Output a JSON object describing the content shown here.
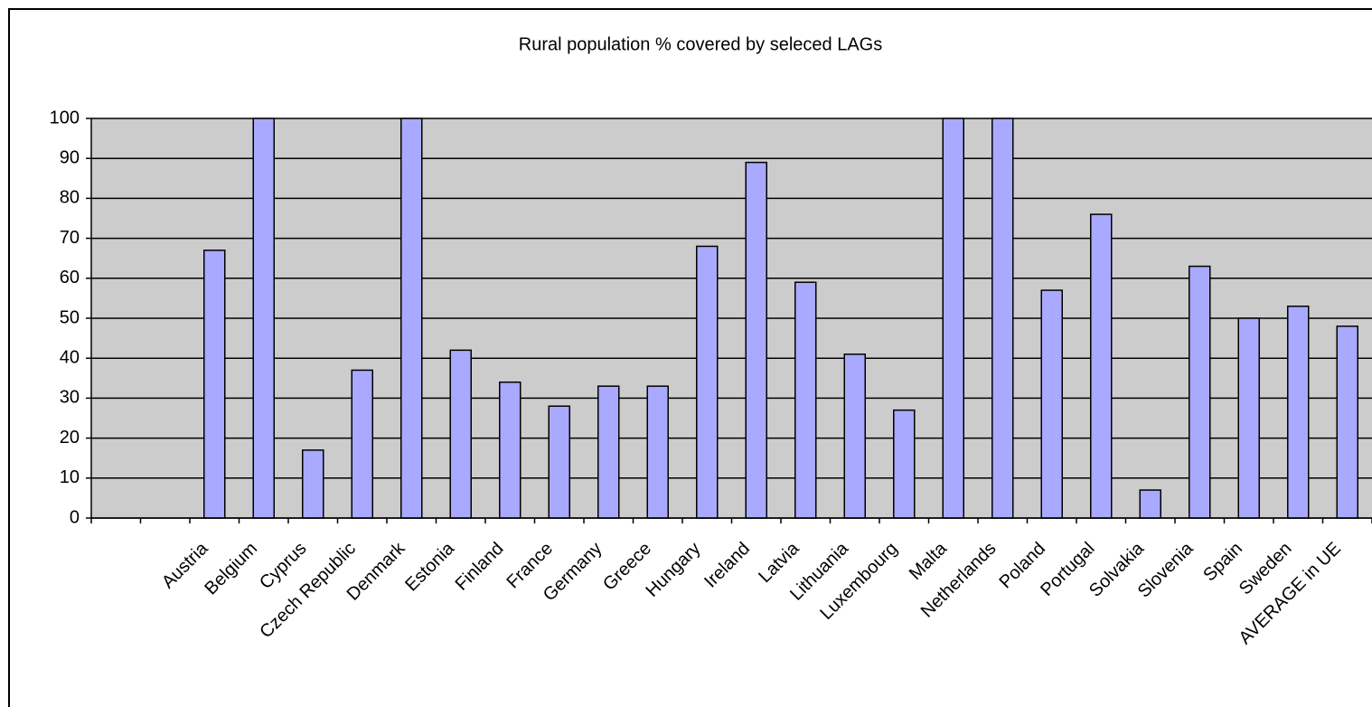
{
  "chart_data": {
    "type": "bar",
    "title": "Rural population % covered by seleced LAGs",
    "categories": [
      null,
      null,
      "Austria",
      "Belgium",
      "Cyprus",
      "Czech Republic",
      "Denmark",
      "Estonia",
      "Finland",
      "France",
      "Germany",
      "Greece",
      "Hungary",
      "Ireland",
      "Latvia",
      "Lithuania",
      "Luxembourg",
      "Malta",
      "Netherlands",
      "Poland",
      "Portugal",
      "Solvakia",
      "Slovenia",
      "Spain",
      "Sweden",
      "AVERAGE in UE"
    ],
    "values": [
      null,
      null,
      67,
      100,
      17,
      37,
      100,
      42,
      34,
      28,
      33,
      33,
      68,
      89,
      59,
      41,
      27,
      100,
      100,
      57,
      76,
      7,
      63,
      50,
      53,
      48
    ],
    "color": "#a9a9ff",
    "plot_background": "#cccccc",
    "ylim": [
      0,
      100
    ],
    "yticks": [
      0,
      10,
      20,
      30,
      40,
      50,
      60,
      70,
      80,
      90,
      100
    ],
    "grid": true
  }
}
